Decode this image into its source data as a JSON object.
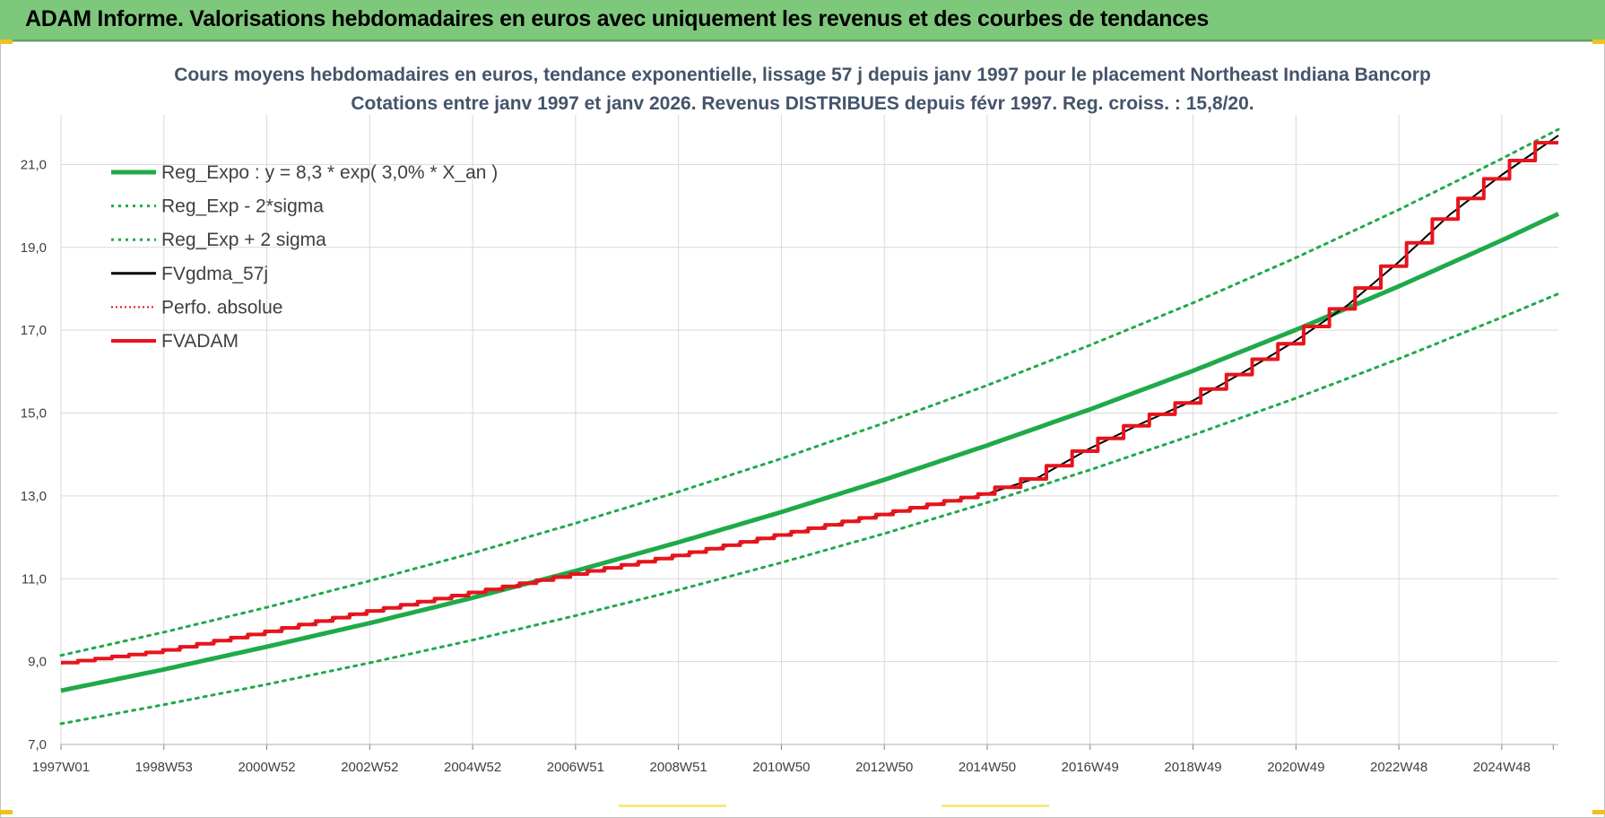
{
  "header": {
    "title": "ADAM Informe. Valorisations hebdomadaires en euros avec uniquement les revenus et des courbes de tendances"
  },
  "colors": {
    "banner": "#7ec87c",
    "green": "#1faa4a",
    "red": "#e8141c",
    "black": "#000000",
    "grid": "#d9d9d9"
  },
  "chart_data": {
    "type": "line",
    "title": "Cours moyens hebdomadaires en euros, tendance exponentielle, lissage 57 j depuis janv 1997 pour le placement Northeast Indiana Bancorp",
    "subtitle": "Cotations entre janv 1997 et janv 2026. Revenus DISTRIBUES depuis févr 1997. Reg. croiss. : 15,8/20.",
    "xlabel": "",
    "ylabel": "",
    "ylim": [
      7.0,
      22.2
    ],
    "xlim": [
      1997.0,
      2026.1
    ],
    "grid": true,
    "legend_position": "top-left",
    "y_ticks": [
      "7,0",
      "9,0",
      "11,0",
      "13,0",
      "15,0",
      "17,0",
      "19,0",
      "21,0"
    ],
    "x_tick_labels": [
      "1997W01",
      "1998W53",
      "2000W52",
      "2002W52",
      "2004W52",
      "2006W51",
      "2008W51",
      "2010W50",
      "2012W50",
      "2014W50",
      "2016W49",
      "2018W49",
      "2020W49",
      "2022W48",
      "2024W48"
    ],
    "legend": [
      "Reg_Expo : y = 8,3 * exp( 3,0% *  X_an )",
      "Reg_Exp - 2*sigma",
      "Reg_Exp + 2 sigma",
      "FVgdma_57j",
      "Perfo. absolue",
      "FVADAM"
    ],
    "series": [
      {
        "name": "Reg_Expo : y = 8,3 * exp( 3,0% *  X_an )",
        "style": "solid-thick",
        "x": [
          1997,
          1999,
          2001,
          2003,
          2005,
          2007,
          2009,
          2011,
          2013,
          2015,
          2017,
          2019,
          2021,
          2023,
          2025,
          2026.1
        ],
        "values": [
          8.3,
          8.81,
          9.36,
          9.93,
          10.54,
          11.19,
          11.88,
          12.61,
          13.39,
          14.22,
          15.09,
          16.02,
          17.01,
          18.06,
          19.17,
          19.81
        ]
      },
      {
        "name": "Reg_Exp - 2*sigma",
        "style": "dotted",
        "x": [
          1997,
          1999,
          2001,
          2003,
          2005,
          2007,
          2009,
          2011,
          2013,
          2015,
          2017,
          2019,
          2021,
          2023,
          2025,
          2026.1
        ],
        "values": [
          7.5,
          7.96,
          8.45,
          8.97,
          9.52,
          10.11,
          10.73,
          11.39,
          12.09,
          12.84,
          13.63,
          14.47,
          15.36,
          16.31,
          17.31,
          17.88
        ]
      },
      {
        "name": "Reg_Exp + 2 sigma",
        "style": "dotted",
        "x": [
          1997,
          1999,
          2001,
          2003,
          2005,
          2007,
          2009,
          2011,
          2013,
          2015,
          2017,
          2019,
          2021,
          2023,
          2025,
          2026.1
        ],
        "values": [
          9.15,
          9.71,
          10.31,
          10.95,
          11.62,
          12.34,
          13.1,
          13.9,
          14.76,
          15.67,
          16.64,
          17.66,
          18.75,
          19.91,
          21.14,
          21.85
        ]
      },
      {
        "name": "FVgdma_57j",
        "style": "solid-thin",
        "x": [
          1997,
          1999,
          2001,
          2003,
          2005,
          2007,
          2009,
          2011,
          2013,
          2015,
          2016,
          2017,
          2018,
          2019,
          2020,
          2021,
          2022,
          2023,
          2024,
          2025,
          2026.1
        ],
        "values": [
          8.95,
          9.25,
          9.7,
          10.2,
          10.65,
          11.1,
          11.55,
          12.05,
          12.55,
          13.05,
          13.45,
          14.15,
          14.75,
          15.3,
          16.0,
          16.75,
          17.6,
          18.65,
          19.8,
          20.75,
          21.7
        ]
      },
      {
        "name": "FVADAM",
        "style": "solid-thick-steps",
        "x": [
          1997,
          1999,
          2001,
          2003,
          2005,
          2007,
          2009,
          2011,
          2013,
          2015,
          2016,
          2017,
          2018,
          2019,
          2020,
          2021,
          2022,
          2023,
          2024,
          2025,
          2026.1
        ],
        "values": [
          8.95,
          9.25,
          9.7,
          10.2,
          10.65,
          11.1,
          11.55,
          12.05,
          12.55,
          13.05,
          13.45,
          14.15,
          14.75,
          15.3,
          16.0,
          16.75,
          17.6,
          18.65,
          19.8,
          20.75,
          21.7
        ]
      }
    ]
  }
}
